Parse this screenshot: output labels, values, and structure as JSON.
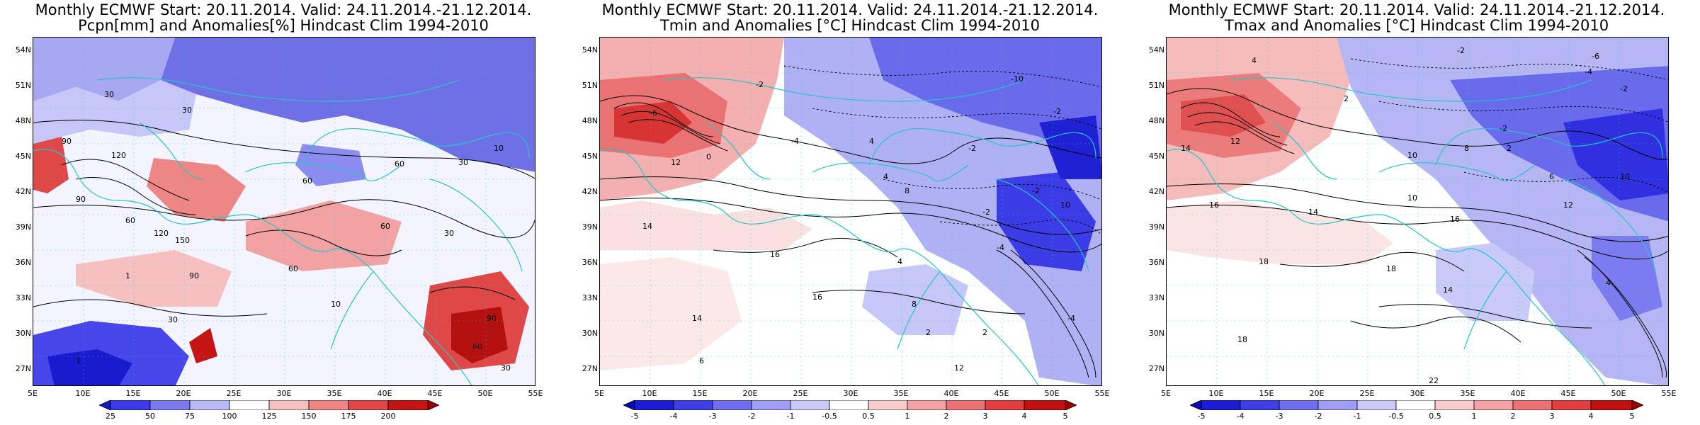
{
  "panels": [
    {
      "id": "pcpn",
      "title_line1": "Monthly ECMWF Start: 20.11.2014. Valid: 24.11.2014.-21.12.2014.",
      "title_line2": "Pcpn[mm] and Anomalies[%] Hindcast Clim 1994-2010",
      "colorbar_labels": [
        "25",
        "50",
        "75",
        "100",
        "125",
        "150",
        "175",
        "200"
      ],
      "colorbar_colors": [
        "#1515c8",
        "#3a3ae8",
        "#7b7bf0",
        "#b9b9f8",
        "#f7c0c0",
        "#ef8686",
        "#e04848",
        "#c41414"
      ],
      "contour_labels": [
        "30",
        "30",
        "90",
        "120",
        "60",
        "60",
        "30",
        "10",
        "90",
        "60",
        "120",
        "150",
        "60",
        "30",
        "1",
        "10",
        "30",
        "60",
        "90",
        "1",
        "30",
        "90",
        "60"
      ]
    },
    {
      "id": "tmin",
      "title_line1": "Monthly ECMWF Start: 20.11.2014. Valid: 24.11.2014.-21.12.2014.",
      "title_line2": "Tmin and Anomalies [°C] Hindcast Clim 1994-2010",
      "colorbar_labels": [
        "-5",
        "-4",
        "-3",
        "-2",
        "-1",
        "-0.5",
        "0.5",
        "1",
        "2",
        "3",
        "4",
        "5"
      ],
      "colorbar_colors": [
        "#0b0bb4",
        "#1c1cd8",
        "#3f3fe8",
        "#6e6ef0",
        "#9e9ef6",
        "#cacaf9",
        "#ffffff",
        "#f8cccc",
        "#f2a2a2",
        "#ea7272",
        "#df3f3f",
        "#c20f0f",
        "#9c0000"
      ],
      "contour_labels": [
        "-2",
        "-10",
        "-6",
        "-2",
        "-4",
        "4",
        "-2",
        "0",
        "12",
        "14",
        "4",
        "8",
        "-2",
        "10",
        "-2",
        "-4",
        "16",
        "16",
        "14",
        "6",
        "2",
        "4",
        "8",
        "-4",
        "2",
        "12"
      ]
    },
    {
      "id": "tmax",
      "title_line1": "Monthly ECMWF Start: 20.11.2014. Valid: 24.11.2014.-21.12.2014.",
      "title_line2": "Tmax and Anomalies [°C] Hindcast Clim 1994-2010",
      "colorbar_labels": [
        "-5",
        "-4",
        "-3",
        "-2",
        "-1",
        "-0.5",
        "0.5",
        "1",
        "2",
        "3",
        "4",
        "5"
      ],
      "colorbar_colors": [
        "#0b0bb4",
        "#1c1cd8",
        "#3f3fe8",
        "#6e6ef0",
        "#9e9ef6",
        "#cacaf9",
        "#ffffff",
        "#f8cccc",
        "#f2a2a2",
        "#ea7272",
        "#df3f3f",
        "#c20f0f",
        "#9c0000"
      ],
      "contour_labels": [
        "-2",
        "-6",
        "-4",
        "4",
        "2",
        "-2",
        "-2",
        "14",
        "12",
        "10",
        "8",
        "2",
        "6",
        "10",
        "16",
        "14",
        "16",
        "18",
        "18",
        "14",
        "18",
        "22",
        "12",
        "4",
        "10"
      ]
    }
  ],
  "lat_labels": [
    "54N",
    "51N",
    "48N",
    "45N",
    "42N",
    "39N",
    "36N",
    "33N",
    "30N",
    "27N"
  ],
  "lon_labels": [
    "5E",
    "10E",
    "15E",
    "20E",
    "25E",
    "30E",
    "35E",
    "40E",
    "45E",
    "50E",
    "55E"
  ],
  "coast_color": "#20c8c8"
}
